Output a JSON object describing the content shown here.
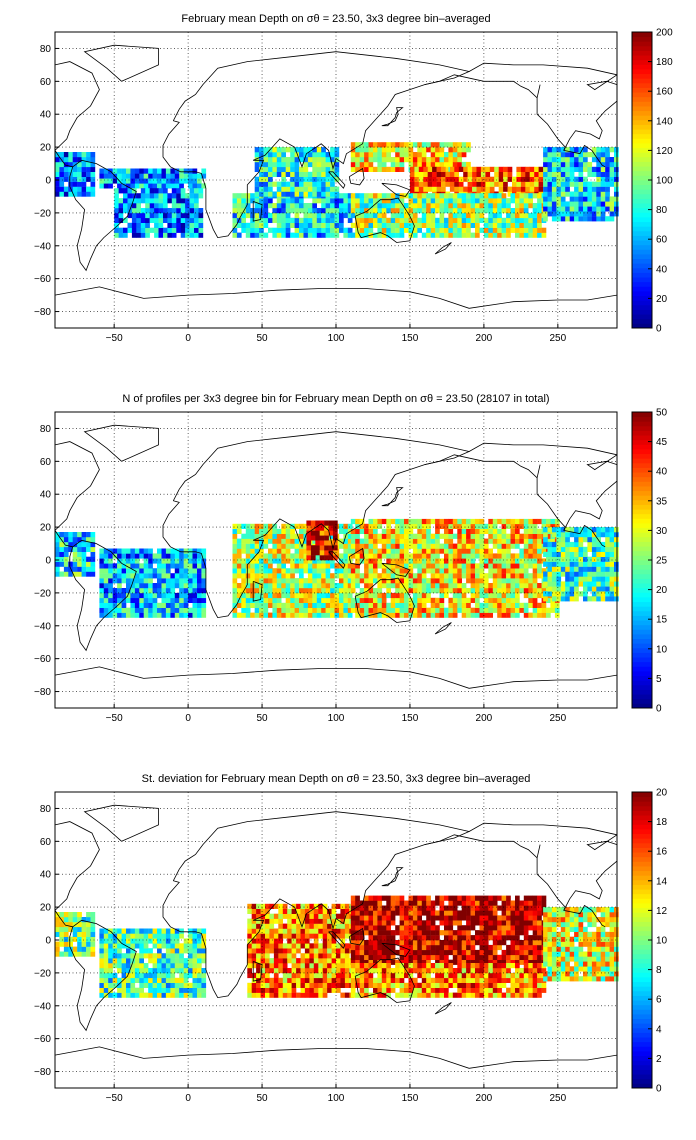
{
  "chart_data": [
    {
      "type": "heatmap",
      "title": "February mean Depth on σθ = 23.50, 3x3 degree bin–averaged",
      "xlabel": "",
      "ylabel": "",
      "x_ticks": [
        -50,
        0,
        50,
        100,
        150,
        200,
        250
      ],
      "y_ticks": [
        -80,
        -60,
        -40,
        -20,
        0,
        20,
        40,
        60,
        80
      ],
      "xlim": [
        -90,
        290
      ],
      "ylim": [
        -90,
        90
      ],
      "colorbar_ticks": [
        0,
        20,
        40,
        60,
        80,
        100,
        120,
        140,
        160,
        180,
        200
      ],
      "clim": [
        0,
        200
      ],
      "grid": true,
      "colormap": "jet",
      "regions": [
        {
          "lon": [
            -90,
            -65
          ],
          "lat": [
            -10,
            15
          ],
          "value": 50
        },
        {
          "lon": [
            -60,
            10
          ],
          "lat": [
            -5,
            5
          ],
          "value": 55
        },
        {
          "lon": [
            -50,
            10
          ],
          "lat": [
            -35,
            -5
          ],
          "value": 50
        },
        {
          "lon": [
            30,
            110
          ],
          "lat": [
            -35,
            -10
          ],
          "value": 70
        },
        {
          "lon": [
            45,
            100
          ],
          "lat": [
            -10,
            20
          ],
          "value": 80
        },
        {
          "lon": [
            110,
            190
          ],
          "lat": [
            5,
            22
          ],
          "value": 130
        },
        {
          "lon": [
            150,
            250
          ],
          "lat": [
            -10,
            8
          ],
          "value": 155
        },
        {
          "lon": [
            110,
            240
          ],
          "lat": [
            -35,
            -10
          ],
          "value": 105
        },
        {
          "lon": [
            240,
            290
          ],
          "lat": [
            -25,
            20
          ],
          "value": 70
        }
      ]
    },
    {
      "type": "heatmap",
      "title": "N of profiles per 3x3 degree bin for February mean Depth on σθ = 23.50 (28107 in total)",
      "xlabel": "",
      "ylabel": "",
      "x_ticks": [
        -50,
        0,
        50,
        100,
        150,
        200,
        250
      ],
      "y_ticks": [
        -80,
        -60,
        -40,
        -20,
        0,
        20,
        40,
        60,
        80
      ],
      "xlim": [
        -90,
        290
      ],
      "ylim": [
        -90,
        90
      ],
      "colorbar_ticks": [
        0,
        5,
        10,
        15,
        20,
        25,
        30,
        35,
        40,
        45,
        50
      ],
      "clim": [
        0,
        50
      ],
      "grid": true,
      "colormap": "jet",
      "total_profiles": 28107,
      "regions": [
        {
          "lon": [
            -90,
            -65
          ],
          "lat": [
            -10,
            15
          ],
          "value": 18
        },
        {
          "lon": [
            -60,
            10
          ],
          "lat": [
            -35,
            5
          ],
          "value": 15
        },
        {
          "lon": [
            30,
            110
          ],
          "lat": [
            -35,
            20
          ],
          "value": 28
        },
        {
          "lon": [
            80,
            100
          ],
          "lat": [
            0,
            22
          ],
          "value": 45
        },
        {
          "lon": [
            110,
            250
          ],
          "lat": [
            -35,
            25
          ],
          "value": 32
        },
        {
          "lon": [
            240,
            290
          ],
          "lat": [
            -25,
            20
          ],
          "value": 22
        }
      ]
    },
    {
      "type": "heatmap",
      "title": "St. deviation for February mean Depth on σθ = 23.50, 3x3 degree bin–averaged",
      "xlabel": "",
      "ylabel": "",
      "x_ticks": [
        -50,
        0,
        50,
        100,
        150,
        200,
        250
      ],
      "y_ticks": [
        -80,
        -60,
        -40,
        -20,
        0,
        20,
        40,
        60,
        80
      ],
      "xlim": [
        -90,
        290
      ],
      "ylim": [
        -90,
        90
      ],
      "colorbar_ticks": [
        0,
        2,
        4,
        6,
        8,
        10,
        12,
        14,
        16,
        18,
        20
      ],
      "clim": [
        0,
        20
      ],
      "grid": true,
      "colormap": "jet",
      "regions": [
        {
          "lon": [
            -90,
            -65
          ],
          "lat": [
            -10,
            15
          ],
          "value": 10
        },
        {
          "lon": [
            -60,
            10
          ],
          "lat": [
            -35,
            5
          ],
          "value": 9
        },
        {
          "lon": [
            40,
            110
          ],
          "lat": [
            -35,
            20
          ],
          "value": 15
        },
        {
          "lon": [
            110,
            240
          ],
          "lat": [
            -15,
            25
          ],
          "value": 19
        },
        {
          "lon": [
            110,
            240
          ],
          "lat": [
            -35,
            -15
          ],
          "value": 15
        },
        {
          "lon": [
            240,
            290
          ],
          "lat": [
            -25,
            20
          ],
          "value": 12
        }
      ]
    }
  ]
}
